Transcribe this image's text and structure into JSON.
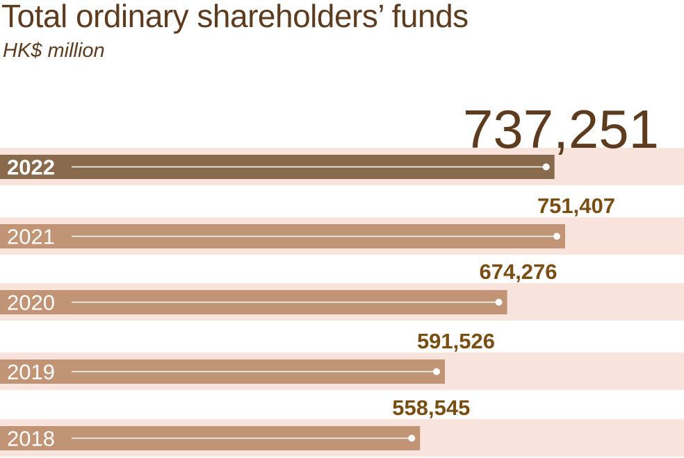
{
  "chart_data": {
    "type": "bar",
    "orientation": "horizontal",
    "title": "Total ordinary shareholders’ funds",
    "subtitle": "HK$ million",
    "categories": [
      "2022",
      "2021",
      "2020",
      "2019",
      "2018"
    ],
    "values": [
      737251,
      751407,
      674276,
      591526,
      558545
    ],
    "value_labels": [
      "737,251",
      "751,407",
      "674,276",
      "591,526",
      "558,545"
    ],
    "highlight": "2022",
    "grid": false,
    "legend": "none",
    "colors": {
      "title": "#5c3b1e",
      "band": "#f8e4dc",
      "bar": "#c09474",
      "bar_highlight": "#8a6a4c",
      "value_label": "#7a4e12",
      "value_label_highlight": "#5c3b1e",
      "marker": "#ffffff"
    }
  }
}
